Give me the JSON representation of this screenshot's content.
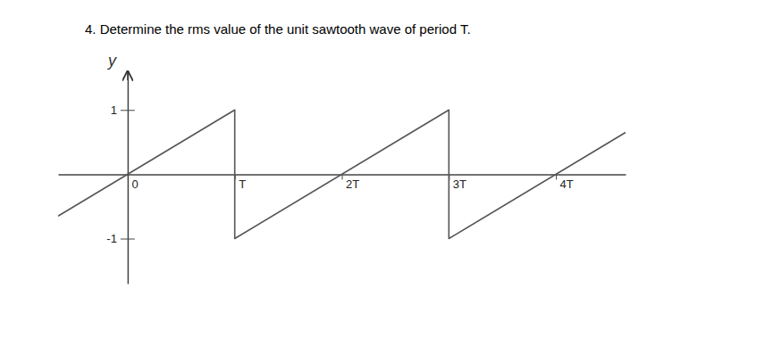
{
  "chart_data": {
    "type": "line",
    "title": "4. Determine the rms value of the unit sawtooth wave of period T.",
    "y_label": "y",
    "x": [
      -0.65,
      1,
      1,
      3,
      3,
      4.65
    ],
    "values": [
      -0.65,
      1,
      -1,
      1,
      -1,
      0.65
    ],
    "color": "#555555",
    "xlim": [
      -0.65,
      4.65
    ],
    "ylim": [
      -1.7,
      1.6
    ],
    "xticks": [
      0,
      {
        "value": 1,
        "label": "T"
      },
      {
        "value": 2,
        "label": "2T"
      },
      {
        "value": 3,
        "label": "3T"
      },
      {
        "value": 4,
        "label": "4T"
      }
    ],
    "yticks": [
      1,
      -1
    ],
    "grid": false
  }
}
